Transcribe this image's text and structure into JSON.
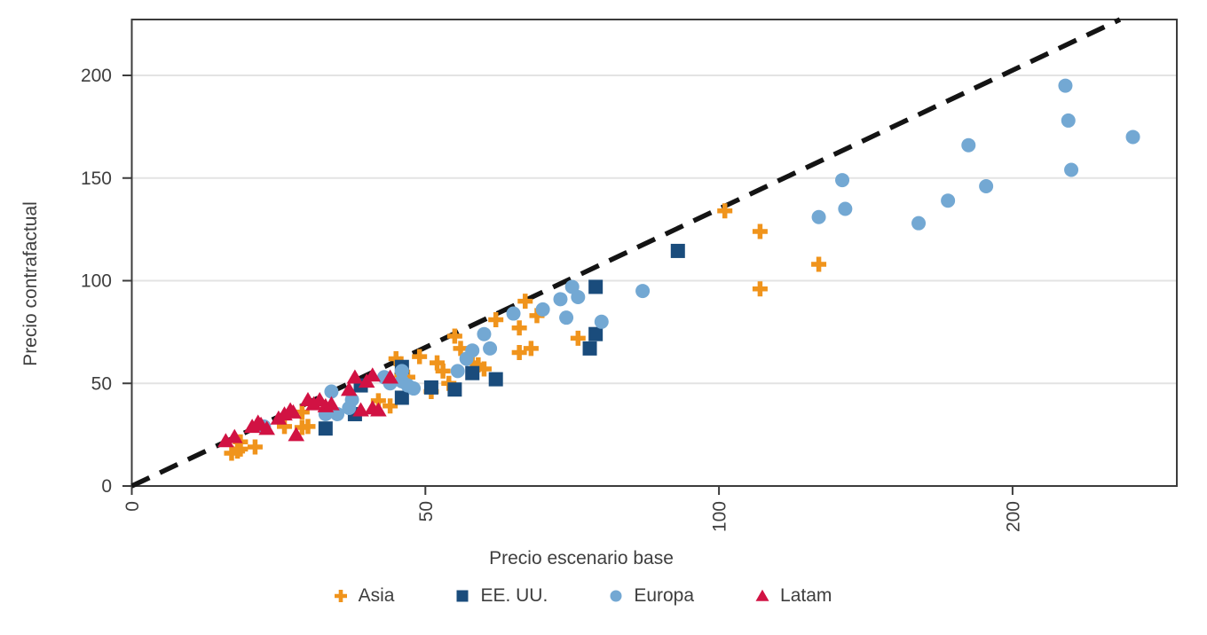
{
  "chart_data": {
    "type": "scatter",
    "title": "",
    "xlabel": "Precio escenario base",
    "ylabel": "Precio contrafactual",
    "x_ticks": [
      0,
      50,
      100,
      200
    ],
    "y_ticks": [
      0,
      50,
      100,
      150,
      200
    ],
    "x_scale_note": "ticks 0/50/100/200 are equally spaced (piecewise-linear axis, 100-200 compressed 2x)",
    "y_scale": "linear",
    "ylim": [
      0,
      227
    ],
    "xlim": [
      0,
      257
    ],
    "grid": "horizontal gridlines at y ticks",
    "legend_position": "bottom",
    "identity_line": {
      "x1": 0,
      "y1": 0,
      "x2": 236.6,
      "y2": 227.2,
      "style": "dashed",
      "color": "#141414"
    },
    "series": [
      {
        "name": "Asia",
        "marker": "plus",
        "color": "#F0941C",
        "points": [
          [
            17,
            16
          ],
          [
            18,
            17
          ],
          [
            18.5,
            18
          ],
          [
            18.5,
            21.5
          ],
          [
            21,
            19
          ],
          [
            26,
            29
          ],
          [
            29,
            28.5
          ],
          [
            30,
            29
          ],
          [
            29,
            36
          ],
          [
            42,
            41.5
          ],
          [
            44,
            39
          ],
          [
            45,
            62
          ],
          [
            46,
            54
          ],
          [
            47,
            53
          ],
          [
            49,
            63
          ],
          [
            51,
            46
          ],
          [
            52,
            60
          ],
          [
            53,
            56
          ],
          [
            54,
            50
          ],
          [
            55,
            73
          ],
          [
            56,
            67
          ],
          [
            58,
            60
          ],
          [
            59,
            59
          ],
          [
            60,
            57
          ],
          [
            62,
            81
          ],
          [
            66,
            77
          ],
          [
            66,
            65
          ],
          [
            67,
            90
          ],
          [
            68,
            67
          ],
          [
            69,
            83
          ],
          [
            76,
            72
          ],
          [
            102,
            134
          ],
          [
            114,
            124
          ],
          [
            114,
            96
          ],
          [
            134,
            108
          ]
        ]
      },
      {
        "name": "EE. UU.",
        "marker": "square",
        "color": "#1A4C7C",
        "points": [
          [
            33,
            28
          ],
          [
            38,
            35
          ],
          [
            39,
            49
          ],
          [
            46,
            43
          ],
          [
            46,
            58
          ],
          [
            51,
            48
          ],
          [
            55,
            47
          ],
          [
            58,
            55
          ],
          [
            62,
            52
          ],
          [
            78,
            67
          ],
          [
            79,
            74
          ],
          [
            79,
            97
          ],
          [
            93,
            114.5
          ]
        ]
      },
      {
        "name": "Europa",
        "marker": "circle",
        "color": "#73A8D3",
        "points": [
          [
            22.5,
            29
          ],
          [
            33,
            35
          ],
          [
            34,
            46
          ],
          [
            35,
            35
          ],
          [
            37,
            38
          ],
          [
            37.5,
            42
          ],
          [
            43,
            53
          ],
          [
            44,
            50
          ],
          [
            46,
            51
          ],
          [
            46,
            56
          ],
          [
            47,
            49
          ],
          [
            48,
            47.5
          ],
          [
            55.5,
            56
          ],
          [
            57,
            62
          ],
          [
            58,
            66
          ],
          [
            60,
            74
          ],
          [
            61,
            67
          ],
          [
            65,
            84
          ],
          [
            70,
            86
          ],
          [
            73,
            91
          ],
          [
            74,
            82
          ],
          [
            75,
            97
          ],
          [
            76,
            92
          ],
          [
            80,
            80
          ],
          [
            87,
            95
          ],
          [
            134,
            131
          ],
          [
            142,
            149
          ],
          [
            143,
            135
          ],
          [
            168,
            128
          ],
          [
            178,
            139
          ],
          [
            185,
            166
          ],
          [
            191,
            146
          ],
          [
            218,
            195
          ],
          [
            219,
            178
          ],
          [
            220,
            154
          ],
          [
            241,
            170
          ]
        ]
      },
      {
        "name": "Latam",
        "marker": "triangle",
        "color": "#D11243",
        "points": [
          [
            16,
            22
          ],
          [
            17.5,
            24
          ],
          [
            20.5,
            29
          ],
          [
            21.5,
            31
          ],
          [
            22,
            30
          ],
          [
            23,
            28
          ],
          [
            25,
            33
          ],
          [
            26,
            35
          ],
          [
            27,
            37
          ],
          [
            27.5,
            36
          ],
          [
            28,
            25
          ],
          [
            30,
            42
          ],
          [
            31,
            40
          ],
          [
            32,
            42
          ],
          [
            33,
            39
          ],
          [
            34,
            40
          ],
          [
            37,
            47
          ],
          [
            38,
            53
          ],
          [
            40,
            51
          ],
          [
            41,
            54
          ],
          [
            44,
            53
          ],
          [
            39,
            37
          ],
          [
            41,
            38
          ],
          [
            42,
            37
          ]
        ]
      }
    ],
    "colors": {
      "axis": "#3C3C3C",
      "gridline": "#E3E3E3",
      "text": "#3E3E3E",
      "dashed_line": "#141414"
    }
  }
}
